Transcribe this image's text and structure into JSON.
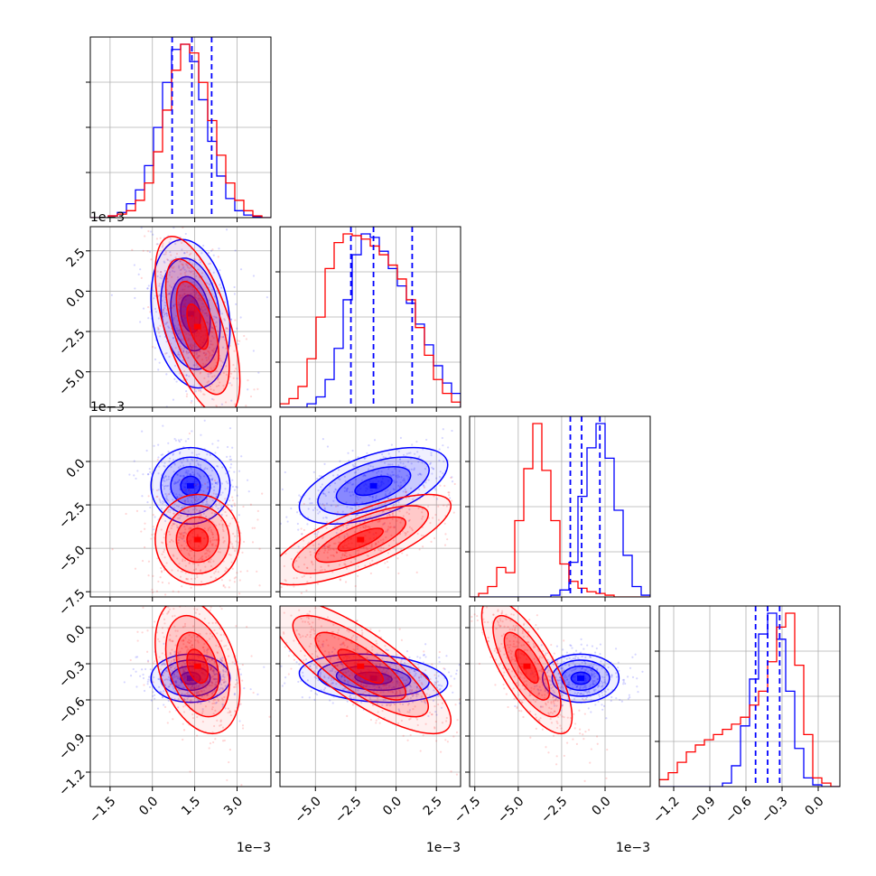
{
  "figure": {
    "colors": {
      "blue": "#0000ff",
      "red": "#ff0000"
    }
  },
  "chart_data": {
    "type": "corner",
    "grid": true,
    "parameters": [
      {
        "range": [
          -2.2,
          4.2
        ],
        "ticks": [
          -1.5,
          0.0,
          1.5,
          3.0
        ],
        "tick_labels": [
          "−1.5",
          "0.0",
          "1.5",
          "3.0"
        ],
        "scale_label": "1e−3"
      },
      {
        "range": [
          -7.2,
          4.0
        ],
        "ticks": [
          -5.0,
          -2.5,
          0.0,
          2.5
        ],
        "tick_labels": [
          "−5.0",
          "−2.5",
          "0.0",
          "2.5"
        ],
        "scale_label": "1e−3"
      },
      {
        "range": [
          -7.8,
          2.6
        ],
        "ticks": [
          -7.5,
          -5.0,
          -2.5,
          0.0
        ],
        "tick_labels": [
          "−7.5",
          "−5.0",
          "−2.5",
          "0.0"
        ],
        "scale_label": "1e−3"
      },
      {
        "range": [
          -1.32,
          0.18
        ],
        "ticks": [
          -1.2,
          -0.9,
          -0.6,
          -0.3,
          0.0
        ],
        "tick_labels": [
          "−1.2",
          "−0.9",
          "−0.6",
          "−0.3",
          "0.0"
        ]
      }
    ],
    "y_axis_ticks": {
      "1": {
        "ticks": [
          -5.0,
          -2.5,
          0.0,
          2.5
        ],
        "tick_labels": [
          "−5.0",
          "−2.5",
          "0.0",
          "2.5"
        ]
      },
      "2": {
        "ticks": [
          -7.5,
          -5.0,
          -2.5,
          0.0
        ],
        "tick_labels": [
          "−7.5",
          "−5.0",
          "−2.5",
          "0.0"
        ]
      },
      "3": {
        "ticks": [
          -1.2,
          -0.9,
          -0.6,
          -0.3,
          0.0
        ],
        "tick_labels": [
          "−1.2",
          "−0.9",
          "−0.6",
          "−0.3",
          "0.0"
        ]
      }
    },
    "series": [
      {
        "color": "#0000ff",
        "means": [
          1.35,
          -1.4,
          -1.4,
          -0.42
        ],
        "sds": [
          0.7,
          2.3,
          1.1,
          0.1
        ],
        "corr": [
          [
            1,
            -0.2,
            0,
            0
          ],
          [
            -0.2,
            1,
            0.55,
            -0.2
          ],
          [
            0,
            0.55,
            1,
            0
          ],
          [
            0,
            -0.2,
            0,
            1
          ]
        ],
        "quantiles": [
          [
            0.7,
            1.4,
            2.1
          ],
          [
            -2.8,
            -1.4,
            1.0
          ],
          [
            -2.0,
            -1.35,
            -0.3
          ],
          [
            -0.52,
            -0.42,
            -0.32
          ]
        ],
        "hist": [
          [
            0.0,
            0.0,
            0.01,
            0.03,
            0.08,
            0.16,
            0.3,
            0.52,
            0.78,
            0.97,
            1.0,
            0.9,
            0.68,
            0.44,
            0.24,
            0.11,
            0.04,
            0.015,
            0.005,
            0.0
          ],
          [
            0.0,
            0.0,
            0.0,
            0.02,
            0.06,
            0.16,
            0.34,
            0.62,
            0.88,
            1.0,
            0.98,
            0.9,
            0.8,
            0.7,
            0.6,
            0.48,
            0.36,
            0.24,
            0.14,
            0.08
          ],
          [
            0.0,
            0.0,
            0.0,
            0.0,
            0.0,
            0.0,
            0.0,
            0.0,
            0.0,
            0.01,
            0.04,
            0.2,
            0.58,
            0.86,
            1.0,
            0.8,
            0.5,
            0.24,
            0.06,
            0.01
          ],
          [
            0.0,
            0.0,
            0.0,
            0.0,
            0.0,
            0.0,
            0.0,
            0.02,
            0.12,
            0.35,
            0.62,
            0.88,
            1.0,
            0.85,
            0.55,
            0.22,
            0.05,
            0.01,
            0.0,
            0.0
          ]
        ]
      },
      {
        "color": "#ff0000",
        "means": [
          1.6,
          -2.2,
          -4.5,
          -0.32
        ],
        "sds": [
          0.75,
          2.8,
          1.3,
          0.28
        ],
        "corr": [
          [
            1,
            -0.6,
            0,
            -0.35
          ],
          [
            -0.6,
            1,
            0.75,
            -0.8
          ],
          [
            0,
            0.75,
            1,
            -0.75
          ],
          [
            -0.35,
            -0.8,
            -0.75,
            1
          ]
        ],
        "quantiles": [],
        "hist": [
          [
            0.0,
            0.0,
            0.01,
            0.02,
            0.04,
            0.1,
            0.2,
            0.38,
            0.62,
            0.85,
            1.0,
            0.95,
            0.78,
            0.56,
            0.36,
            0.2,
            0.1,
            0.04,
            0.01,
            0.0
          ],
          [
            0.02,
            0.05,
            0.12,
            0.28,
            0.52,
            0.8,
            0.95,
            1.0,
            0.99,
            0.97,
            0.93,
            0.88,
            0.82,
            0.74,
            0.62,
            0.46,
            0.3,
            0.16,
            0.08,
            0.03
          ],
          [
            0.0,
            0.02,
            0.06,
            0.17,
            0.14,
            0.44,
            0.74,
            1.0,
            0.73,
            0.44,
            0.19,
            0.09,
            0.05,
            0.03,
            0.02,
            0.01,
            0.0,
            0.0,
            0.0,
            0.0
          ],
          [
            0.04,
            0.08,
            0.14,
            0.2,
            0.24,
            0.27,
            0.3,
            0.33,
            0.36,
            0.4,
            0.47,
            0.55,
            0.72,
            0.92,
            1.0,
            0.7,
            0.3,
            0.05,
            0.02,
            0.0
          ]
        ]
      }
    ]
  }
}
